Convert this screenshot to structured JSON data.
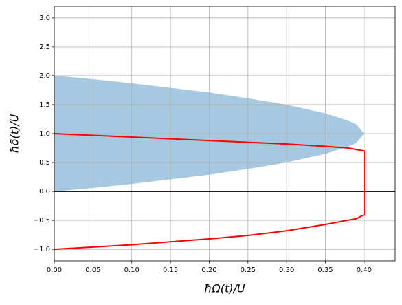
{
  "chart_data": {
    "type": "line",
    "xlabel": "ħΩ(t)/U",
    "ylabel": "ħδ(t)/U",
    "xlim": [
      0,
      0.44
    ],
    "ylim": [
      -1.2,
      3.2
    ],
    "xticks": [
      {
        "value": 0,
        "label": "0.00"
      },
      {
        "value": 0.05,
        "label": "0.05"
      },
      {
        "value": 0.1,
        "label": "0.10"
      },
      {
        "value": 0.15,
        "label": "0.15"
      },
      {
        "value": 0.2,
        "label": "0.20"
      },
      {
        "value": 0.25,
        "label": "0.25"
      },
      {
        "value": 0.3,
        "label": "0.30"
      },
      {
        "value": 0.35,
        "label": "0.35"
      },
      {
        "value": 0.4,
        "label": "0.40"
      }
    ],
    "yticks": [
      {
        "value": -1,
        "label": "−1.0"
      },
      {
        "value": -0.5,
        "label": "−0.5"
      },
      {
        "value": 0,
        "label": "0.0"
      },
      0.5,
      {
        "value": 1,
        "label": "1.0"
      },
      1.5,
      {
        "value": 2,
        "label": "2.0"
      },
      2.5,
      {
        "value": 3,
        "label": "3.0"
      }
    ],
    "grid": true,
    "hline": {
      "value": 0,
      "color": "#000000"
    },
    "area": {
      "color": "#a6c8e0",
      "x": [
        0,
        0.05,
        0.1,
        0.15,
        0.2,
        0.25,
        0.3,
        0.35,
        0.38,
        0.39,
        0.4
      ],
      "upper": [
        2,
        1.94,
        1.87,
        1.79,
        1.71,
        1.61,
        1.5,
        1.35,
        1.22,
        1.16,
        1
      ],
      "lower": [
        0,
        0.06,
        0.13,
        0.21,
        0.29,
        0.39,
        0.5,
        0.65,
        0.78,
        0.84,
        1
      ]
    },
    "series": [
      {
        "color": "#ff0000",
        "x": [
          0,
          0.05,
          0.1,
          0.15,
          0.2,
          0.25,
          0.3,
          0.35,
          0.38,
          0.4,
          0.4,
          0.39,
          0.37,
          0.35,
          0.3,
          0.25,
          0.2,
          0.15,
          0.1,
          0.05,
          0
        ],
        "values": [
          1,
          0.97,
          0.94,
          0.91,
          0.88,
          0.85,
          0.82,
          0.78,
          0.75,
          0.7,
          -0.4,
          -0.47,
          -0.52,
          -0.57,
          -0.68,
          -0.76,
          -0.82,
          -0.87,
          -0.92,
          -0.96,
          -1
        ]
      }
    ]
  }
}
